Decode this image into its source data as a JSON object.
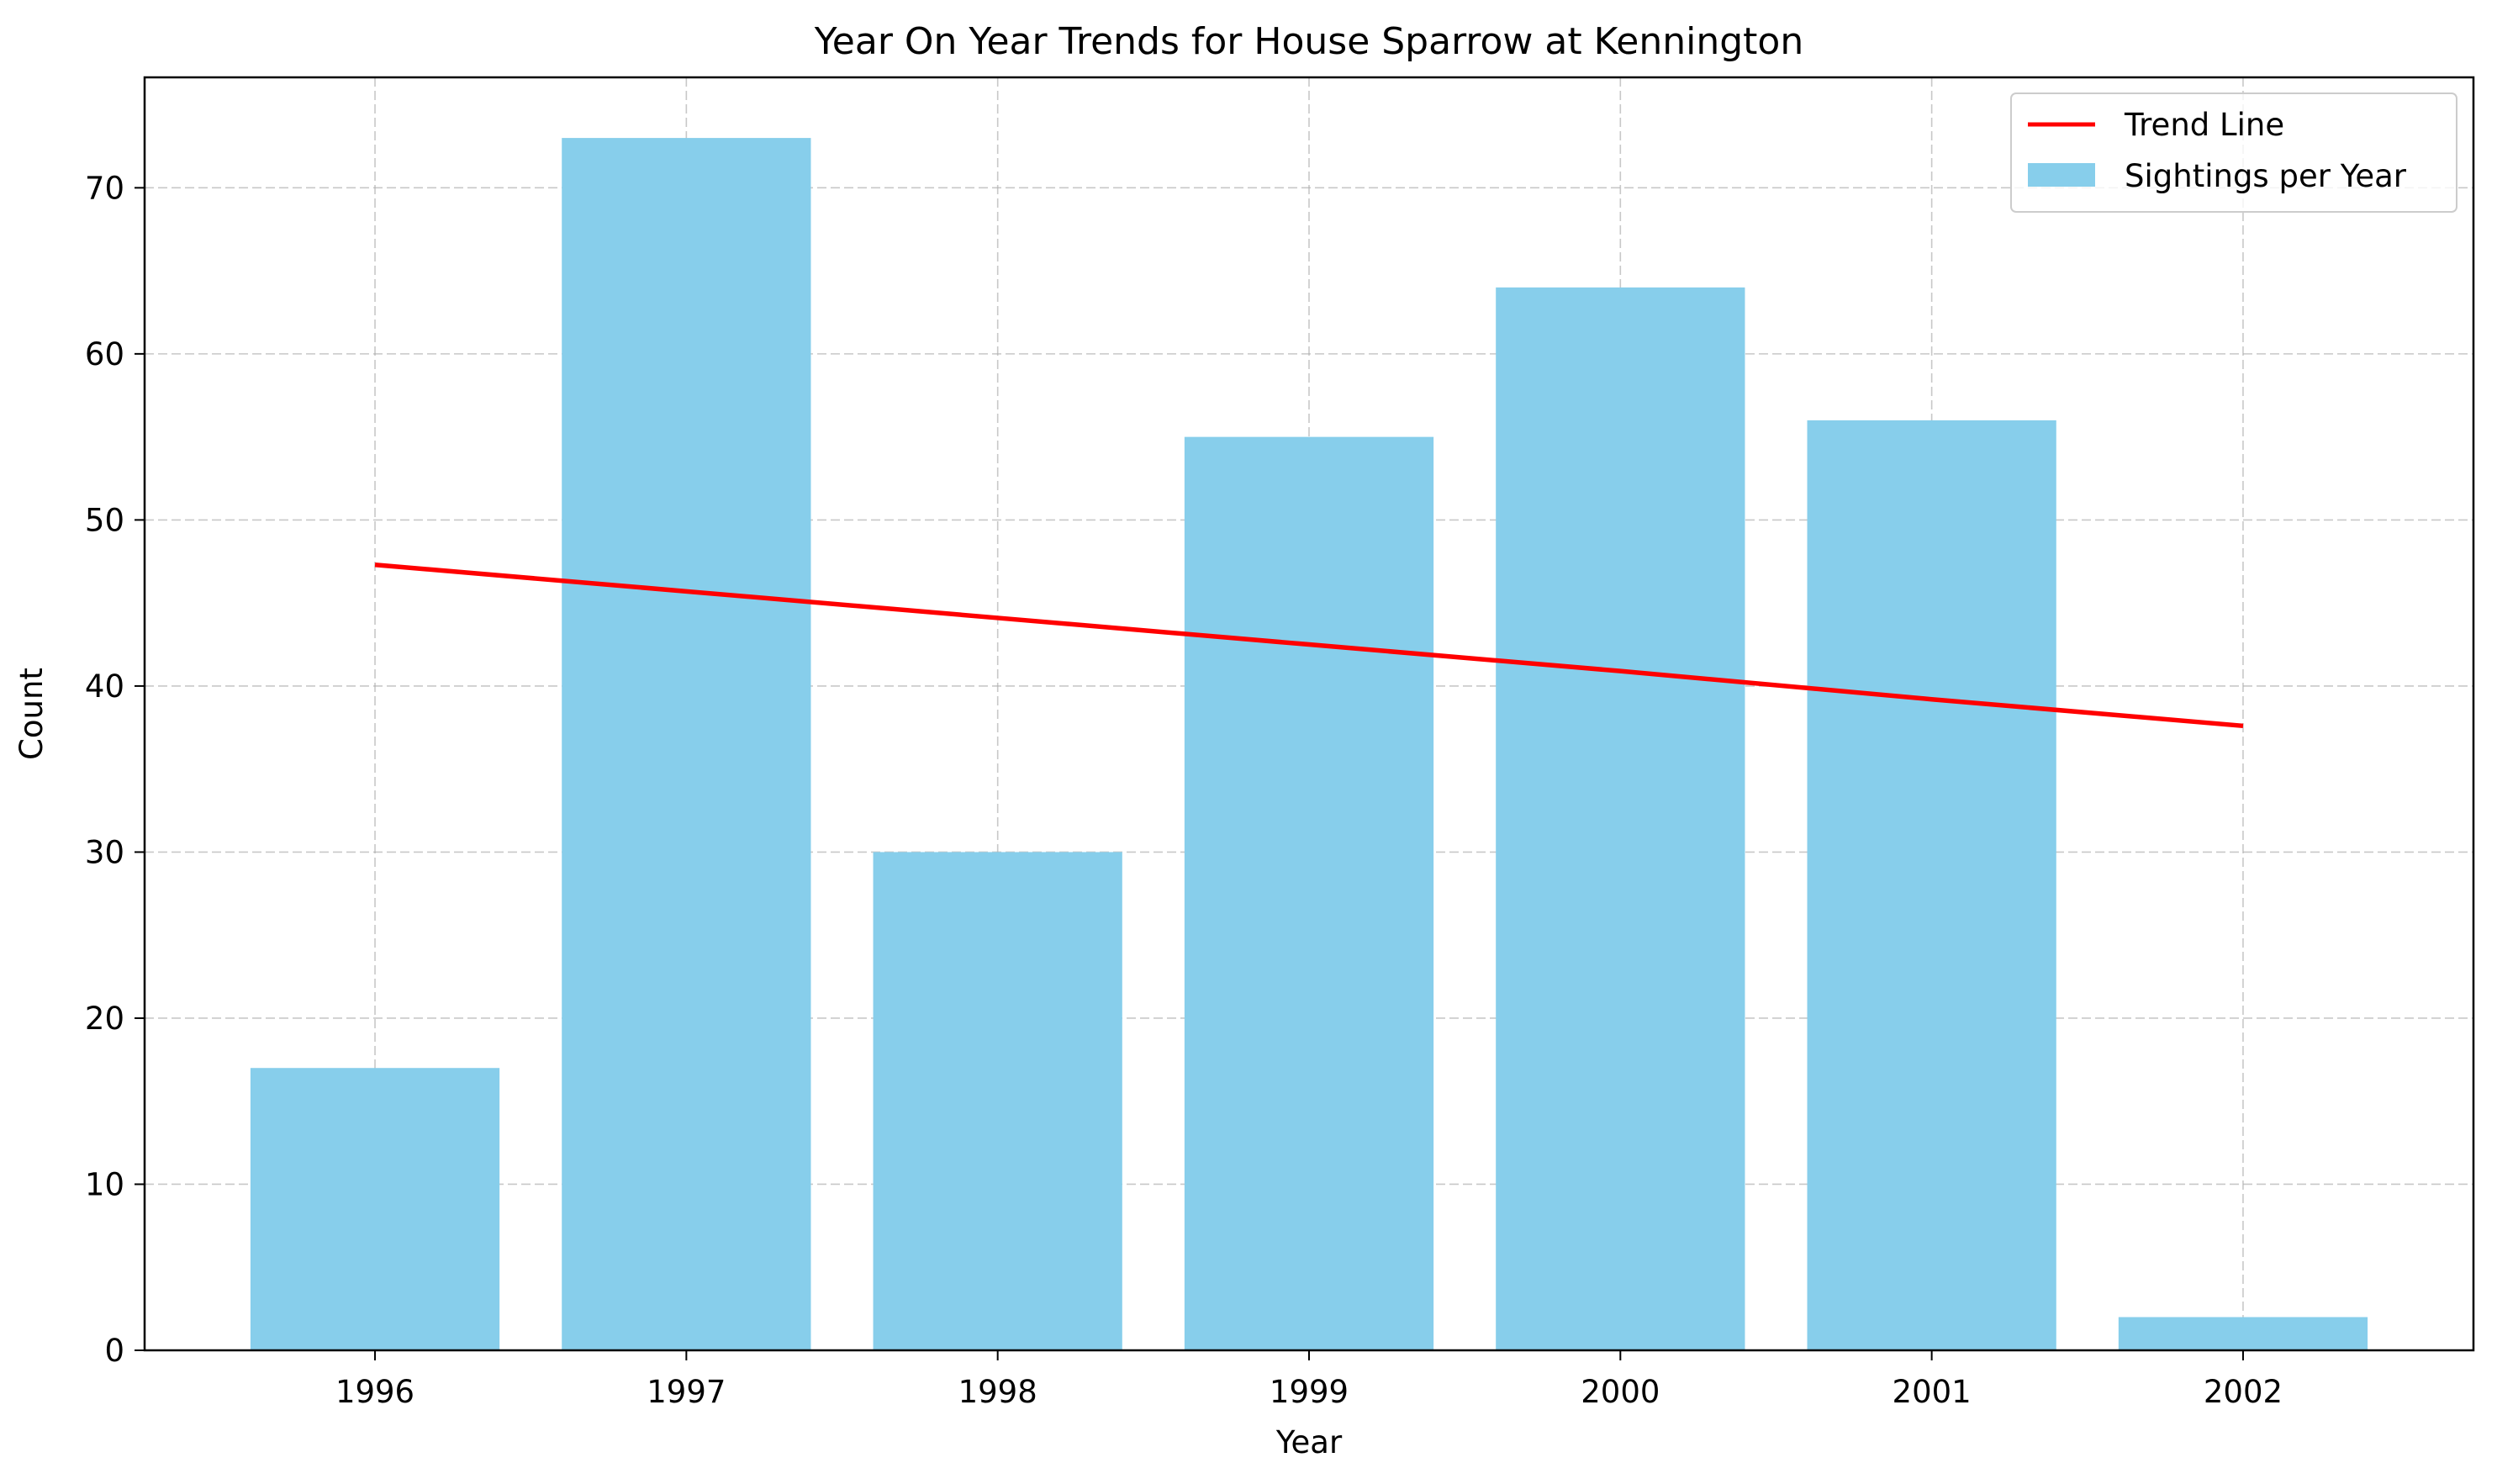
{
  "chart_data": {
    "type": "bar",
    "title": "Year On Year Trends for House Sparrow at Kennington",
    "xlabel": "Year",
    "ylabel": "Count",
    "categories": [
      "1996",
      "1997",
      "1998",
      "1999",
      "2000",
      "2001",
      "2002"
    ],
    "series": [
      {
        "name": "Sightings per Year",
        "type": "bar",
        "color": "#87CEEB",
        "values": [
          17,
          73,
          30,
          55,
          64,
          56,
          2
        ]
      },
      {
        "name": "Trend Line",
        "type": "line",
        "color": "#ff0000",
        "values": [
          47.3,
          45.7,
          44.1,
          42.5,
          40.9,
          39.2,
          37.6
        ]
      }
    ],
    "ylim": [
      0,
      76.65
    ],
    "yticks": [
      0,
      10,
      20,
      30,
      40,
      50,
      60,
      70
    ],
    "grid": true,
    "legend_position": "top-right"
  }
}
